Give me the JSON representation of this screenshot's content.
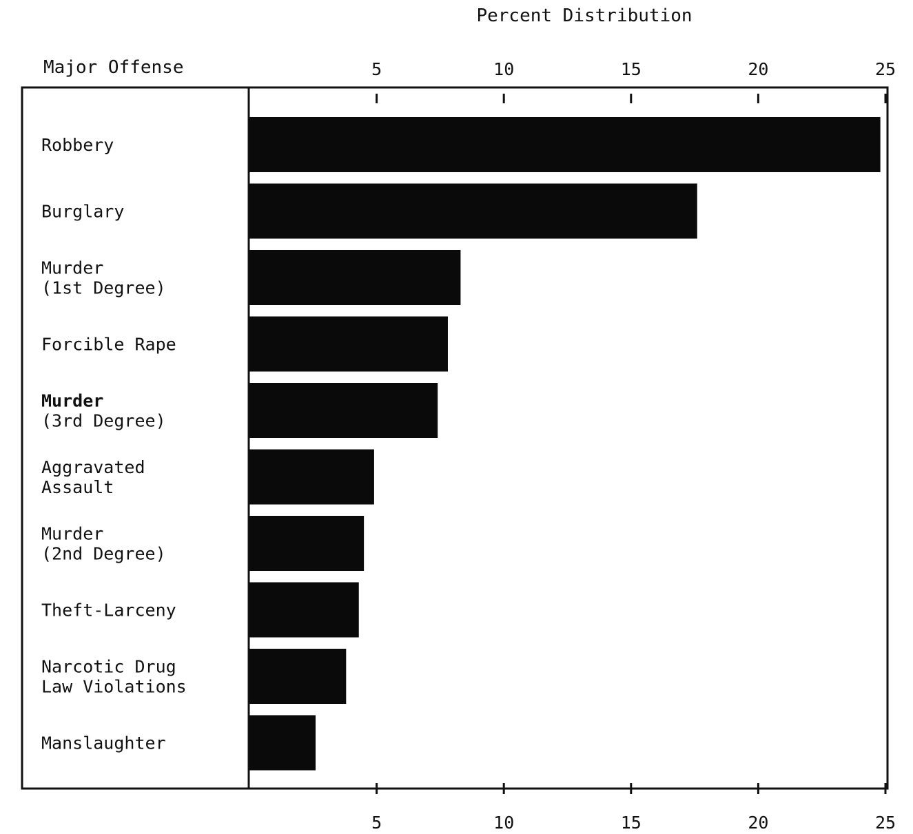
{
  "chart_data": {
    "type": "bar",
    "orientation": "horizontal",
    "title": "Percent Distribution",
    "category_header": "Major Offense",
    "categories": [
      [
        "Robbery"
      ],
      [
        "Burglary"
      ],
      [
        "Murder",
        "(1st Degree)"
      ],
      [
        "Forcible Rape"
      ],
      [
        "Murder",
        "(3rd Degree)"
      ],
      [
        "Aggravated",
        "Assault"
      ],
      [
        "Murder",
        "(2nd Degree)"
      ],
      [
        "Theft-Larceny"
      ],
      [
        "Narcotic Drug",
        "Law Violations"
      ],
      [
        "Manslaughter"
      ]
    ],
    "values": [
      24.8,
      17.6,
      8.3,
      7.8,
      7.4,
      4.9,
      4.5,
      4.3,
      3.8,
      2.6
    ],
    "xlim": [
      0,
      25
    ],
    "xticks": [
      5,
      10,
      15,
      20,
      25
    ],
    "bar_color": "#0a0a0a",
    "grid": false
  }
}
